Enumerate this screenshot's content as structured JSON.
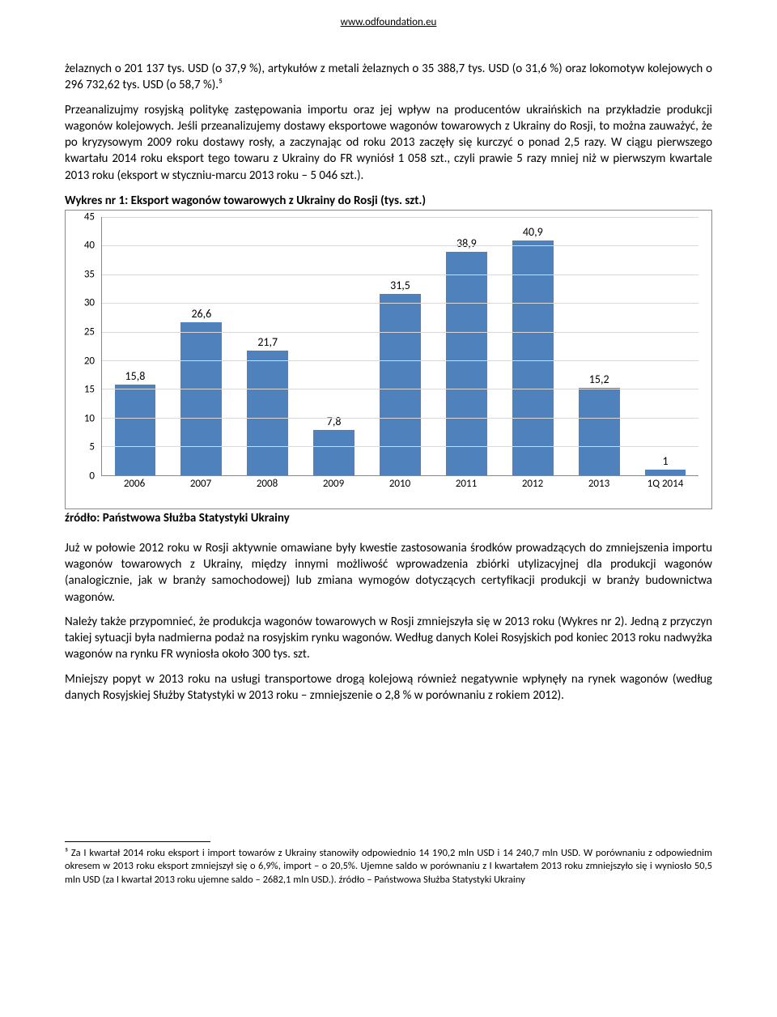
{
  "header": {
    "url": "www.odfoundation.eu"
  },
  "paragraph1": "żelaznych o 201 137 tys. USD (o 37,9 %), artykułów z metali żelaznych o 35 388,7 tys. USD (o 31,6 %) oraz lokomotyw kolejowych o 296 732,62 tys. USD (o 58,7 %).⁵",
  "paragraph2": "Przeanalizujmy rosyjską politykę zastępowania importu oraz jej wpływ na producentów ukraińskich na przykładzie produkcji wagonów kolejowych. Jeśli przeanalizujemy dostawy eksportowe wagonów towarowych z Ukrainy do Rosji, to można zauważyć, że po kryzysowym 2009 roku dostawy rosły, a zaczynając od roku 2013 zaczęły się kurczyć o ponad 2,5 razy. W ciągu pierwszego kwartału 2014 roku eksport tego towaru z Ukrainy do FR wyniósł 1 058 szt., czyli prawie 5 razy mniej niż w pierwszym kwartale 2013 roku (eksport w styczniu-marcu 2013 roku – 5 046 szt.).",
  "chart": {
    "title": "Wykres nr 1: Eksport wagonów towarowych z Ukrainy do Rosji (tys. szt.)",
    "categories": [
      "2006",
      "2007",
      "2008",
      "2009",
      "2010",
      "2011",
      "2012",
      "2013",
      "1Q 2014"
    ],
    "values": [
      15.8,
      26.6,
      21.7,
      7.8,
      31.5,
      38.9,
      40.9,
      15.2,
      1
    ],
    "labels": [
      "15,8",
      "26,6",
      "21,7",
      "7,8",
      "31,5",
      "38,9",
      "40,9",
      "15,2",
      "1"
    ],
    "ylim": [
      0,
      45
    ],
    "ytick_step": 5,
    "bar_color": "#4f81bd",
    "grid_color": "#d9d9d9",
    "source": "źródło: Państwowa Służba Statystyki Ukrainy"
  },
  "paragraph3": "Już w połowie 2012 roku w Rosji aktywnie omawiane były kwestie zastosowania środków prowadzących do zmniejszenia importu wagonów towarowych z Ukrainy, między innymi możliwość wprowadzenia zbiórki utylizacyjnej dla produkcji wagonów (analogicznie, jak w branży samochodowej) lub zmiana wymogów dotyczących certyfikacji produkcji w branży budownictwa wagonów.",
  "paragraph4": "Należy także przypomnieć, że produkcja wagonów towarowych w Rosji zmniejszyła się w 2013 roku (Wykres nr 2). Jedną z przyczyn takiej sytuacji była nadmierna podaż na rosyjskim rynku wagonów. Według danych Kolei Rosyjskich pod koniec 2013 roku nadwyżka wagonów na rynku FR wyniosła około 300 tys. szt.",
  "paragraph5": "Mniejszy popyt w 2013 roku na usługi transportowe drogą kolejową również negatywnie wpłynęły na rynek wagonów (według danych Rosyjskiej Służby Statystyki w 2013 roku – zmniejszenie o 2,8 % w porównaniu z rokiem 2012).",
  "footnote": "⁵ Za I kwartał 2014 roku eksport i import towarów z Ukrainy stanowiły odpowiednio 14 190,2 mln USD i 14 240,7 mln USD. W porównaniu z odpowiednim okresem w 2013 roku eksport zmniejszył się o 6,9%, import – o 20,5%. Ujemne saldo w porównaniu z I kwartałem 2013 roku zmniejszyło się i wyniosło 50,5 mln USD (za I kwartał 2013 roku ujemne saldo – 2682,1 mln USD.). źródło – Państwowa Służba Statystyki Ukrainy"
}
